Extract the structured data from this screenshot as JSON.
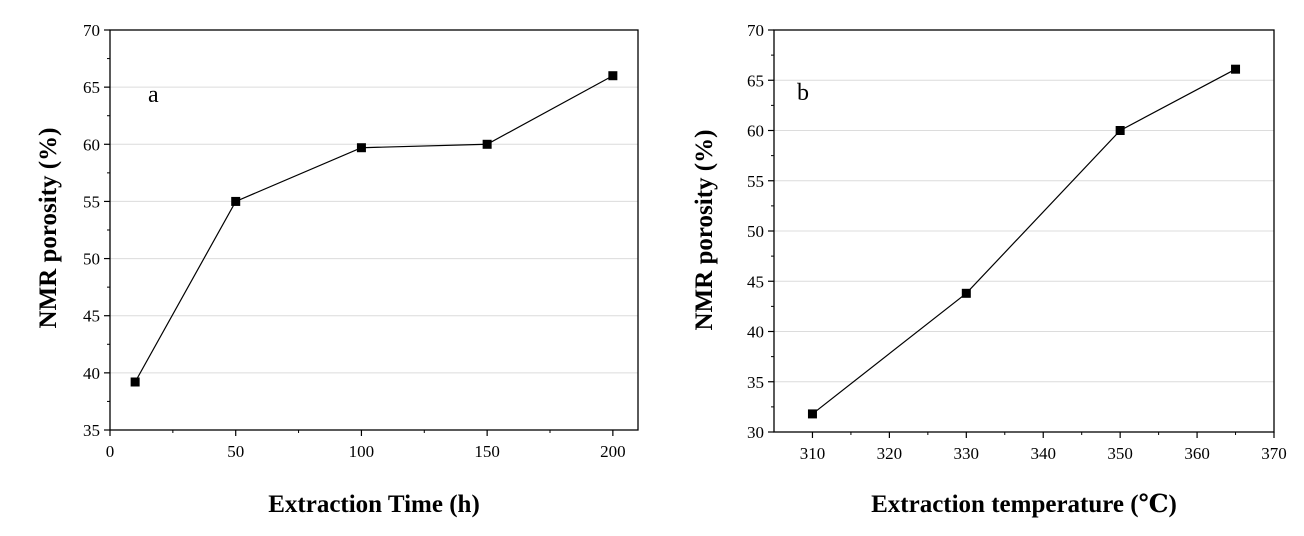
{
  "chart_data": [
    {
      "type": "line",
      "panel_label": "a",
      "title": "",
      "xlabel": "Extraction Time (h)",
      "ylabel": "NMR porosity (%)",
      "xlim": [
        0,
        210
      ],
      "ylim": [
        35,
        70
      ],
      "xticks": [
        0,
        50,
        100,
        150,
        200
      ],
      "xtick_labels": [
        "0",
        "50",
        "100",
        "150",
        "200"
      ],
      "yticks": [
        35,
        40,
        45,
        50,
        55,
        60,
        65,
        70
      ],
      "ytick_labels": [
        "35",
        "40",
        "45",
        "50",
        "55",
        "60",
        "65",
        "70"
      ],
      "grid": true,
      "marker": "square",
      "color": "#000000",
      "series": [
        {
          "name": "NMR porosity",
          "x": [
            10,
            50,
            100,
            150,
            200
          ],
          "values": [
            39.2,
            55.0,
            59.7,
            60.0,
            66.0
          ]
        }
      ]
    },
    {
      "type": "line",
      "panel_label": "b",
      "title": "",
      "xlabel": "Extraction temperature (℃)",
      "ylabel": "NMR porosity (%)",
      "xlim": [
        305,
        370
      ],
      "ylim": [
        30,
        70
      ],
      "xticks": [
        310,
        320,
        330,
        340,
        350,
        360,
        370
      ],
      "xtick_labels": [
        "310",
        "320",
        "330",
        "340",
        "350",
        "360",
        "370"
      ],
      "yticks": [
        30,
        35,
        40,
        45,
        50,
        55,
        60,
        65,
        70
      ],
      "ytick_labels": [
        "30",
        "35",
        "40",
        "45",
        "50",
        "55",
        "60",
        "65",
        "70"
      ],
      "grid": true,
      "marker": "square",
      "color": "#000000",
      "series": [
        {
          "name": "NMR porosity",
          "x": [
            310,
            330,
            350,
            365
          ],
          "values": [
            31.8,
            43.8,
            60.0,
            66.1
          ]
        }
      ]
    }
  ]
}
